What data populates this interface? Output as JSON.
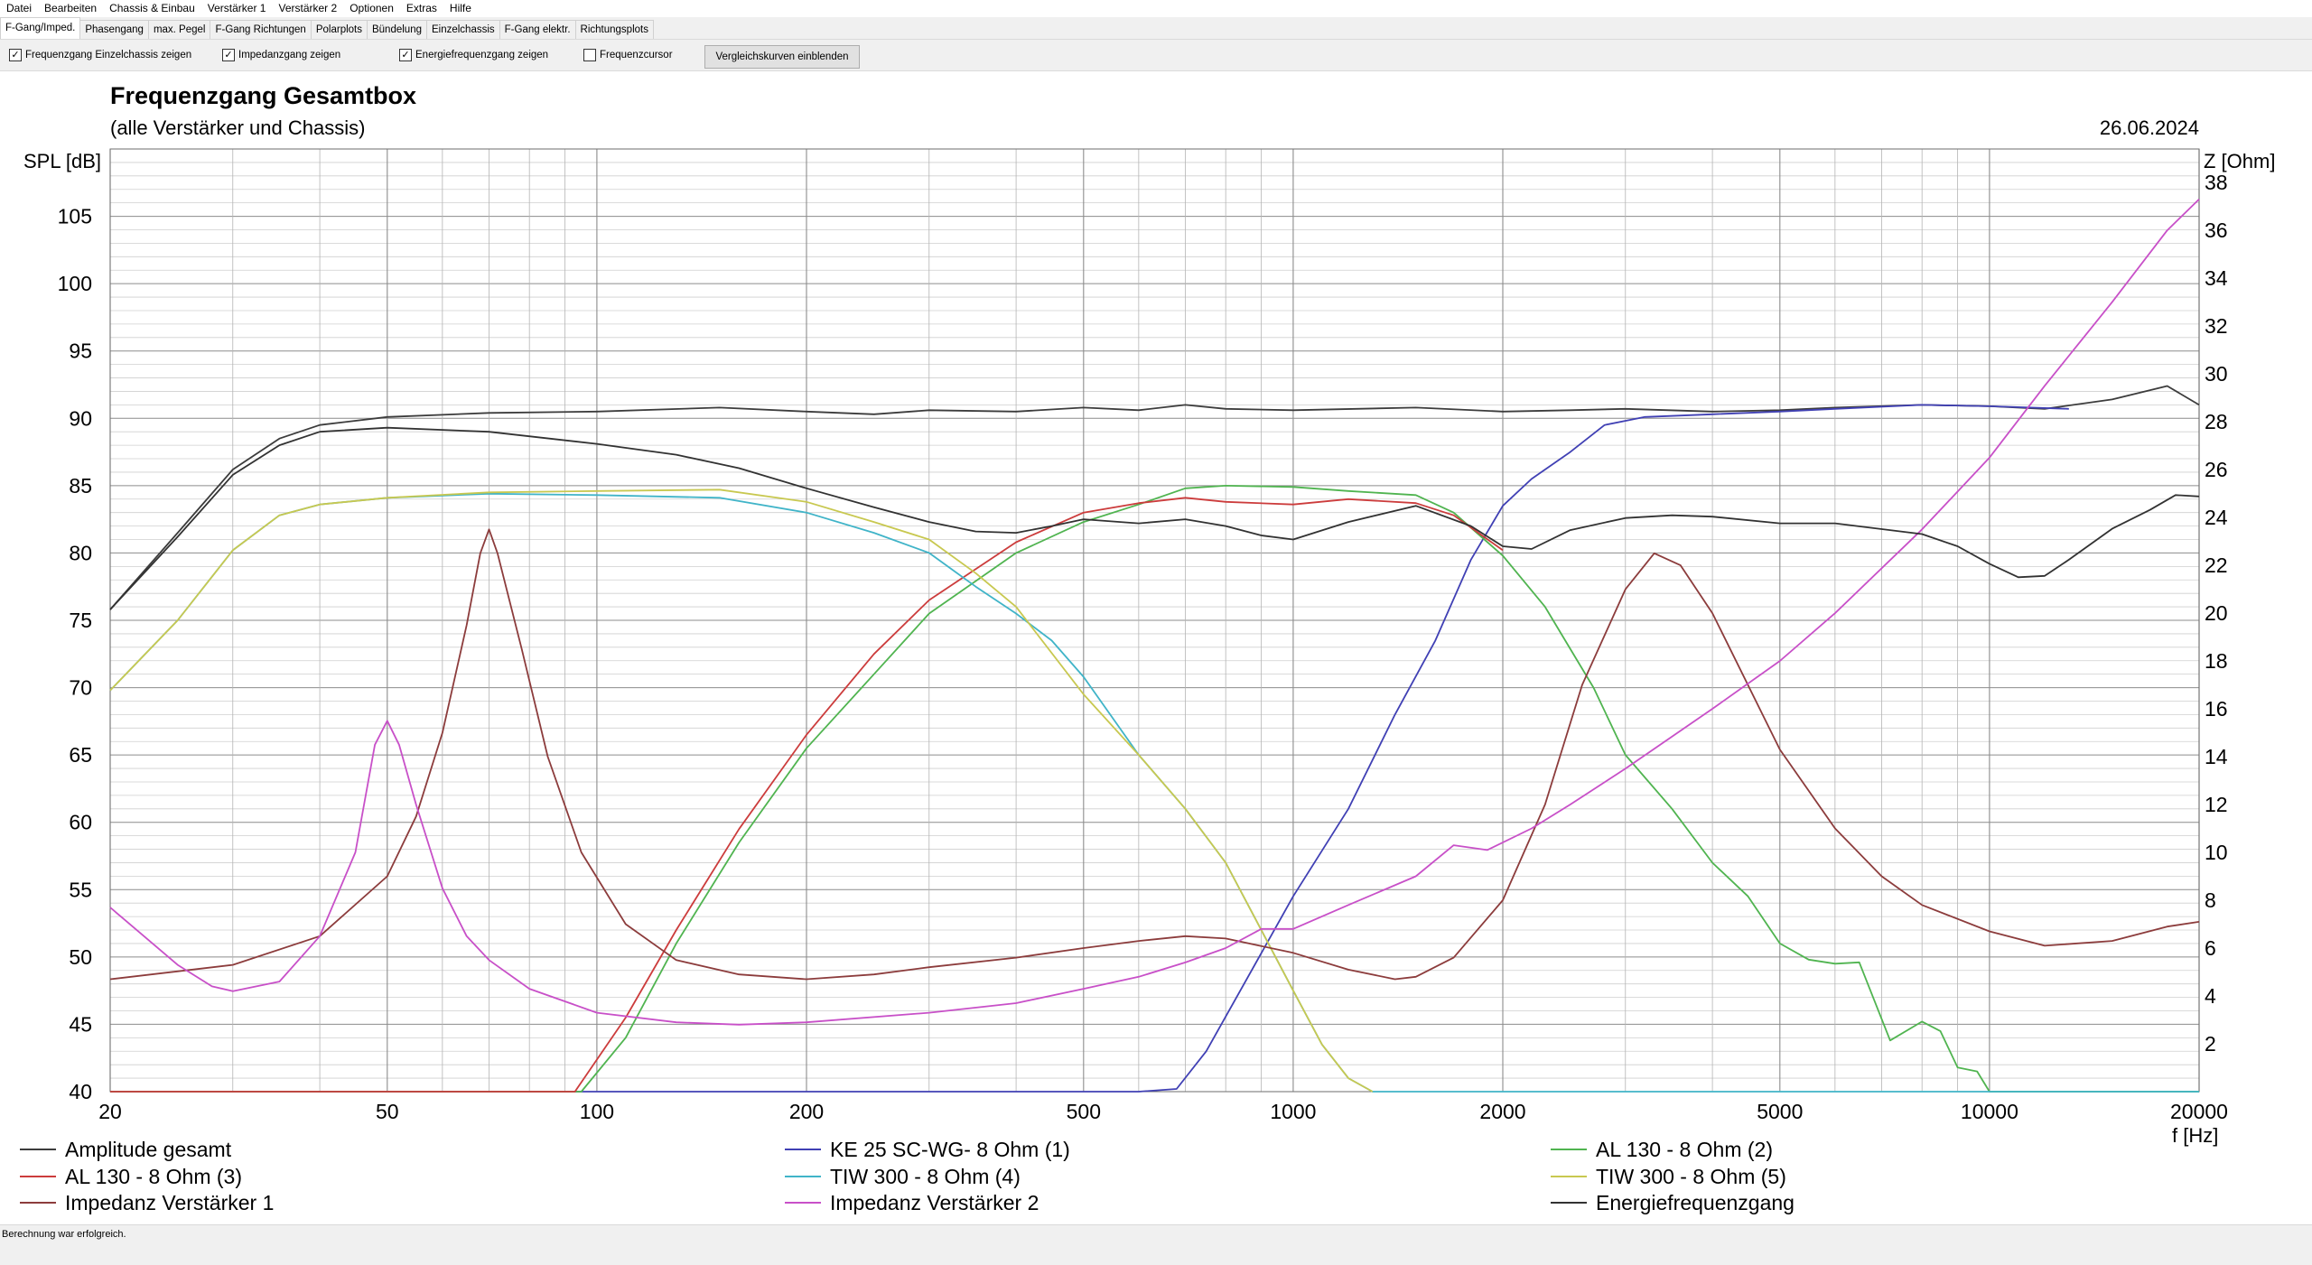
{
  "menu": [
    "Datei",
    "Bearbeiten",
    "Chassis & Einbau",
    "Verstärker 1",
    "Verstärker 2",
    "Optionen",
    "Extras",
    "Hilfe"
  ],
  "tabs": [
    "F-Gang/Imped.",
    "Phasengang",
    "max. Pegel",
    "F-Gang Richtungen",
    "Polarplots",
    "Bündelung",
    "Einzelchassis",
    "F-Gang elektr.",
    "Richtungsplots"
  ],
  "active_tab": 0,
  "options": {
    "chk1": "Frequenzgang Einzelchassis zeigen",
    "chk2": "Impedanzgang zeigen",
    "chk3": "Energiefrequenzgang zeigen",
    "chk4": "Frequenzcursor",
    "button": "Vergleichskurven einblenden"
  },
  "status": "Berechnung war erfolgreich.",
  "colors": {
    "grid": "#b4b4b4",
    "gridMajor": "#8c8c8c"
  },
  "chart_data": {
    "type": "line",
    "title": "Frequenzgang Gesamtbox",
    "subtitle": "(alle Verstärker und Chassis)",
    "date": "26.06.2024",
    "ylabel": "SPL [dB]",
    "y2label": "Z [Ohm]",
    "xlabel": "f [Hz]",
    "xscale": "log",
    "xlim": [
      20,
      20000
    ],
    "ylim": [
      40,
      110
    ],
    "y2lim": [
      0,
      39.4
    ],
    "xticks": [
      20,
      50,
      100,
      200,
      500,
      1000,
      2000,
      5000,
      10000,
      20000
    ],
    "xtick_labels": [
      "20",
      "50",
      "100",
      "200",
      "500",
      "1000",
      "2000",
      "5000",
      "10000",
      "20000"
    ],
    "yticks": [
      40,
      45,
      50,
      55,
      60,
      65,
      70,
      75,
      80,
      85,
      90,
      95,
      100,
      105
    ],
    "y2ticks": [
      2,
      4,
      6,
      8,
      10,
      12,
      14,
      16,
      18,
      20,
      22,
      24,
      26,
      28,
      30,
      32,
      34,
      36,
      38
    ],
    "series": [
      {
        "name": "Amplitude gesamt",
        "axis": "left",
        "color": "#3c3c3c",
        "width": 1.2,
        "points": [
          [
            20,
            75.8
          ],
          [
            25,
            81.5
          ],
          [
            30,
            86.2
          ],
          [
            35,
            88.5
          ],
          [
            40,
            89.5
          ],
          [
            50,
            90.1
          ],
          [
            70,
            90.4
          ],
          [
            100,
            90.5
          ],
          [
            150,
            90.8
          ],
          [
            200,
            90.5
          ],
          [
            250,
            90.3
          ],
          [
            300,
            90.6
          ],
          [
            400,
            90.5
          ],
          [
            500,
            90.8
          ],
          [
            600,
            90.6
          ],
          [
            700,
            91
          ],
          [
            800,
            90.7
          ],
          [
            1000,
            90.6
          ],
          [
            1500,
            90.8
          ],
          [
            2000,
            90.5
          ],
          [
            2500,
            90.6
          ],
          [
            3000,
            90.7
          ],
          [
            4000,
            90.5
          ],
          [
            5000,
            90.6
          ],
          [
            6000,
            90.8
          ],
          [
            8000,
            91
          ],
          [
            10000,
            90.9
          ],
          [
            12000,
            90.7
          ],
          [
            15000,
            91.4
          ],
          [
            18000,
            92.4
          ],
          [
            20000,
            91
          ]
        ]
      },
      {
        "name": "KE 25 SC-WG- 8 Ohm   (1)",
        "axis": "left",
        "color": "#4040b4",
        "width": 1.2,
        "points": [
          [
            20,
            40
          ],
          [
            600,
            40
          ],
          [
            680,
            40.2
          ],
          [
            750,
            43
          ],
          [
            850,
            48
          ],
          [
            1000,
            54.5
          ],
          [
            1200,
            61
          ],
          [
            1400,
            68
          ],
          [
            1600,
            73.5
          ],
          [
            1800,
            79.5
          ],
          [
            2000,
            83.5
          ],
          [
            2200,
            85.5
          ],
          [
            2500,
            87.5
          ],
          [
            2800,
            89.5
          ],
          [
            3200,
            90.1
          ],
          [
            4000,
            90.3
          ],
          [
            5000,
            90.5
          ],
          [
            6000,
            90.7
          ],
          [
            8000,
            91
          ],
          [
            10000,
            90.9
          ],
          [
            13000,
            90.7
          ]
        ]
      },
      {
        "name": "AL 130 - 8 Ohm (2)",
        "axis": "left",
        "color": "#50b450",
        "width": 1.2,
        "points": [
          [
            20,
            40
          ],
          [
            95,
            40
          ],
          [
            110,
            44
          ],
          [
            130,
            51
          ],
          [
            160,
            58.5
          ],
          [
            200,
            65.5
          ],
          [
            250,
            71
          ],
          [
            300,
            75.5
          ],
          [
            400,
            80
          ],
          [
            500,
            82.3
          ],
          [
            600,
            83.6
          ],
          [
            700,
            84.8
          ],
          [
            800,
            85
          ],
          [
            1000,
            84.9
          ],
          [
            1200,
            84.6
          ],
          [
            1500,
            84.3
          ],
          [
            1700,
            83
          ],
          [
            2000,
            79.8
          ],
          [
            2300,
            76
          ],
          [
            2700,
            70
          ],
          [
            3000,
            65
          ],
          [
            3500,
            61
          ],
          [
            4000,
            57
          ],
          [
            4500,
            54.5
          ],
          [
            5000,
            51
          ],
          [
            5500,
            49.8
          ],
          [
            6000,
            49.5
          ],
          [
            6500,
            49.6
          ],
          [
            7200,
            43.8
          ],
          [
            8000,
            45.2
          ],
          [
            8500,
            44.5
          ],
          [
            9000,
            41.8
          ],
          [
            9600,
            41.5
          ],
          [
            10000,
            40
          ],
          [
            20000,
            40
          ]
        ]
      },
      {
        "name": "AL 130 - 8 Ohm (3)",
        "axis": "left",
        "color": "#cc3c3c",
        "width": 1.2,
        "points": [
          [
            20,
            40
          ],
          [
            93,
            40
          ],
          [
            110,
            45.5
          ],
          [
            130,
            52
          ],
          [
            160,
            59.5
          ],
          [
            200,
            66.5
          ],
          [
            250,
            72.5
          ],
          [
            300,
            76.5
          ],
          [
            400,
            80.8
          ],
          [
            500,
            83
          ],
          [
            600,
            83.7
          ],
          [
            700,
            84.1
          ],
          [
            800,
            83.8
          ],
          [
            1000,
            83.6
          ],
          [
            1200,
            84
          ],
          [
            1500,
            83.7
          ],
          [
            1700,
            82.8
          ],
          [
            2000,
            80.2
          ]
        ]
      },
      {
        "name": "TIW 300 - 8 Ohm (4)",
        "axis": "left",
        "color": "#40b4c8",
        "width": 1.2,
        "points": [
          [
            20,
            69.8
          ],
          [
            25,
            75
          ],
          [
            30,
            80.2
          ],
          [
            35,
            82.8
          ],
          [
            40,
            83.6
          ],
          [
            50,
            84.1
          ],
          [
            70,
            84.4
          ],
          [
            100,
            84.3
          ],
          [
            150,
            84.1
          ],
          [
            200,
            83
          ],
          [
            250,
            81.5
          ],
          [
            300,
            80
          ],
          [
            350,
            77.5
          ],
          [
            400,
            75.5
          ],
          [
            450,
            73.5
          ],
          [
            500,
            70.8
          ],
          [
            600,
            65
          ],
          [
            700,
            61
          ],
          [
            800,
            57
          ],
          [
            900,
            52
          ],
          [
            1000,
            47.5
          ],
          [
            1100,
            43.5
          ],
          [
            1200,
            41
          ],
          [
            1300,
            40
          ],
          [
            20000,
            40
          ]
        ]
      },
      {
        "name": "TIW 300 - 8 Ohm (5)",
        "axis": "left",
        "color": "#c8c850",
        "width": 1.2,
        "points": [
          [
            20,
            69.8
          ],
          [
            25,
            75
          ],
          [
            30,
            80.2
          ],
          [
            35,
            82.8
          ],
          [
            40,
            83.6
          ],
          [
            50,
            84.1
          ],
          [
            70,
            84.5
          ],
          [
            100,
            84.6
          ],
          [
            150,
            84.7
          ],
          [
            200,
            83.8
          ],
          [
            250,
            82.3
          ],
          [
            300,
            81
          ],
          [
            350,
            78.5
          ],
          [
            400,
            76
          ],
          [
            500,
            69.5
          ],
          [
            600,
            65
          ],
          [
            700,
            61
          ],
          [
            800,
            57
          ],
          [
            900,
            52
          ],
          [
            1000,
            47.5
          ],
          [
            1100,
            43.5
          ],
          [
            1200,
            41
          ],
          [
            1300,
            40
          ]
        ]
      },
      {
        "name": "Impedanz Verstärker 1",
        "axis": "right",
        "color": "#8c3c3c",
        "width": 1.2,
        "points": [
          [
            20,
            4.7
          ],
          [
            30,
            5.3
          ],
          [
            40,
            6.5
          ],
          [
            50,
            9
          ],
          [
            55,
            11.5
          ],
          [
            60,
            15
          ],
          [
            65,
            19.5
          ],
          [
            68,
            22.5
          ],
          [
            70,
            23.5
          ],
          [
            72,
            22.5
          ],
          [
            78,
            18.5
          ],
          [
            85,
            14
          ],
          [
            95,
            10
          ],
          [
            110,
            7
          ],
          [
            130,
            5.5
          ],
          [
            160,
            4.9
          ],
          [
            200,
            4.7
          ],
          [
            250,
            4.9
          ],
          [
            300,
            5.2
          ],
          [
            400,
            5.6
          ],
          [
            500,
            6
          ],
          [
            600,
            6.3
          ],
          [
            700,
            6.5
          ],
          [
            800,
            6.4
          ],
          [
            1000,
            5.8
          ],
          [
            1200,
            5.1
          ],
          [
            1400,
            4.7
          ],
          [
            1500,
            4.8
          ],
          [
            1700,
            5.6
          ],
          [
            2000,
            8
          ],
          [
            2300,
            12
          ],
          [
            2600,
            17
          ],
          [
            3000,
            21
          ],
          [
            3300,
            22.5
          ],
          [
            3600,
            22
          ],
          [
            4000,
            20
          ],
          [
            5000,
            14.3
          ],
          [
            6000,
            11
          ],
          [
            7000,
            9
          ],
          [
            8000,
            7.8
          ],
          [
            10000,
            6.7
          ],
          [
            12000,
            6.1
          ],
          [
            15000,
            6.3
          ],
          [
            18000,
            6.9
          ],
          [
            20000,
            7.1
          ]
        ]
      },
      {
        "name": "Impedanz Verstärker 2",
        "axis": "right",
        "color": "#c850c8",
        "width": 1.2,
        "points": [
          [
            20,
            7.7
          ],
          [
            25,
            5.3
          ],
          [
            28,
            4.4
          ],
          [
            30,
            4.2
          ],
          [
            35,
            4.6
          ],
          [
            40,
            6.5
          ],
          [
            45,
            10
          ],
          [
            48,
            14.5
          ],
          [
            50,
            15.5
          ],
          [
            52,
            14.5
          ],
          [
            55,
            12
          ],
          [
            60,
            8.5
          ],
          [
            65,
            6.5
          ],
          [
            70,
            5.5
          ],
          [
            80,
            4.3
          ],
          [
            100,
            3.3
          ],
          [
            130,
            2.9
          ],
          [
            160,
            2.8
          ],
          [
            200,
            2.9
          ],
          [
            300,
            3.3
          ],
          [
            400,
            3.7
          ],
          [
            500,
            4.3
          ],
          [
            600,
            4.8
          ],
          [
            700,
            5.4
          ],
          [
            800,
            6
          ],
          [
            900,
            6.8
          ],
          [
            1000,
            6.8
          ],
          [
            1200,
            7.8
          ],
          [
            1500,
            9
          ],
          [
            1700,
            10.3
          ],
          [
            1900,
            10.1
          ],
          [
            2200,
            11
          ],
          [
            2500,
            12
          ],
          [
            3000,
            13.5
          ],
          [
            4000,
            16
          ],
          [
            5000,
            18
          ],
          [
            6000,
            20
          ],
          [
            8000,
            23.5
          ],
          [
            10000,
            26.5
          ],
          [
            12000,
            29.5
          ],
          [
            15000,
            33
          ],
          [
            18000,
            36
          ],
          [
            20000,
            37.3
          ]
        ]
      },
      {
        "name": "Energiefrequenzgang",
        "axis": "left",
        "color": "#323232",
        "width": 1.2,
        "points": [
          [
            20,
            75.8
          ],
          [
            25,
            81.2
          ],
          [
            30,
            85.8
          ],
          [
            35,
            88
          ],
          [
            40,
            89
          ],
          [
            50,
            89.3
          ],
          [
            70,
            89
          ],
          [
            100,
            88.1
          ],
          [
            130,
            87.3
          ],
          [
            160,
            86.3
          ],
          [
            200,
            84.8
          ],
          [
            250,
            83.4
          ],
          [
            300,
            82.3
          ],
          [
            350,
            81.6
          ],
          [
            400,
            81.5
          ],
          [
            450,
            82
          ],
          [
            500,
            82.5
          ],
          [
            600,
            82.2
          ],
          [
            700,
            82.5
          ],
          [
            800,
            82
          ],
          [
            900,
            81.3
          ],
          [
            1000,
            81
          ],
          [
            1200,
            82.3
          ],
          [
            1500,
            83.5
          ],
          [
            1800,
            82
          ],
          [
            2000,
            80.5
          ],
          [
            2200,
            80.3
          ],
          [
            2500,
            81.7
          ],
          [
            3000,
            82.6
          ],
          [
            3500,
            82.8
          ],
          [
            4000,
            82.7
          ],
          [
            5000,
            82.2
          ],
          [
            6000,
            82.2
          ],
          [
            8000,
            81.4
          ],
          [
            9000,
            80.5
          ],
          [
            10000,
            79.2
          ],
          [
            11000,
            78.2
          ],
          [
            12000,
            78.3
          ],
          [
            13000,
            79.5
          ],
          [
            15000,
            81.8
          ],
          [
            17000,
            83.2
          ],
          [
            18500,
            84.3
          ],
          [
            20000,
            84.2
          ]
        ]
      }
    ]
  }
}
